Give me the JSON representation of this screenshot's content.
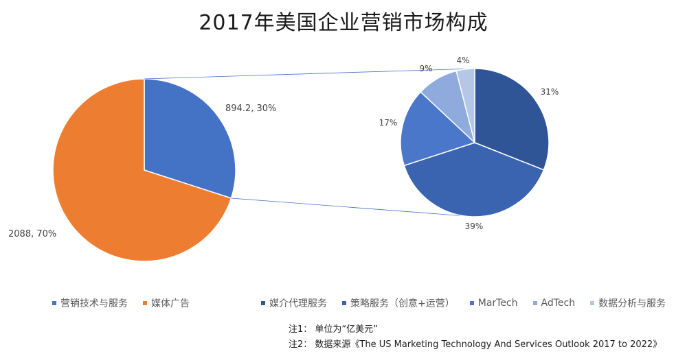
{
  "title": "2017年美国企业营销市场构成",
  "chart_data": [
    {
      "type": "pie",
      "slices": [
        {
          "name": "营销技术与服务",
          "value": 894.2,
          "label": "894.2, 30%",
          "color": "#4472c4"
        },
        {
          "name": "媒体广告",
          "value": 2088,
          "label": "2088, 70%",
          "color": "#ed7d31"
        }
      ]
    },
    {
      "type": "pie",
      "slices": [
        {
          "name": "媒介代理服务",
          "value": 31,
          "label": "31%",
          "color": "#2f5597"
        },
        {
          "name": "策略服务（创意+运营）",
          "value": 39,
          "label": "39%",
          "color": "#3a64b0"
        },
        {
          "name": "MarTech",
          "value": 17,
          "label": "17%",
          "color": "#4a77c9"
        },
        {
          "name": "AdTech",
          "value": 9,
          "label": "9%",
          "color": "#8faadc"
        },
        {
          "name": "数据分析与服务",
          "value": 4,
          "label": "4%",
          "color": "#b4c7e7"
        }
      ]
    }
  ],
  "legend_left": [
    {
      "label": "营销技术与服务",
      "color": "#4472c4"
    },
    {
      "label": "媒体广告",
      "color": "#ed7d31"
    }
  ],
  "legend_right": [
    {
      "label": "媒介代理服务",
      "color": "#2f5597"
    },
    {
      "label": "策略服务（创意+运营）",
      "color": "#3a64b0"
    },
    {
      "label": "MarTech",
      "color": "#4a77c9"
    },
    {
      "label": "AdTech",
      "color": "#8faadc"
    },
    {
      "label": "数据分析与服务",
      "color": "#b4c7e7"
    }
  ],
  "notes": [
    "注1：  单位为“亿美元”",
    "注2：  数据来源《The US Marketing Technology And Services Outlook 2017 to 2022》"
  ]
}
